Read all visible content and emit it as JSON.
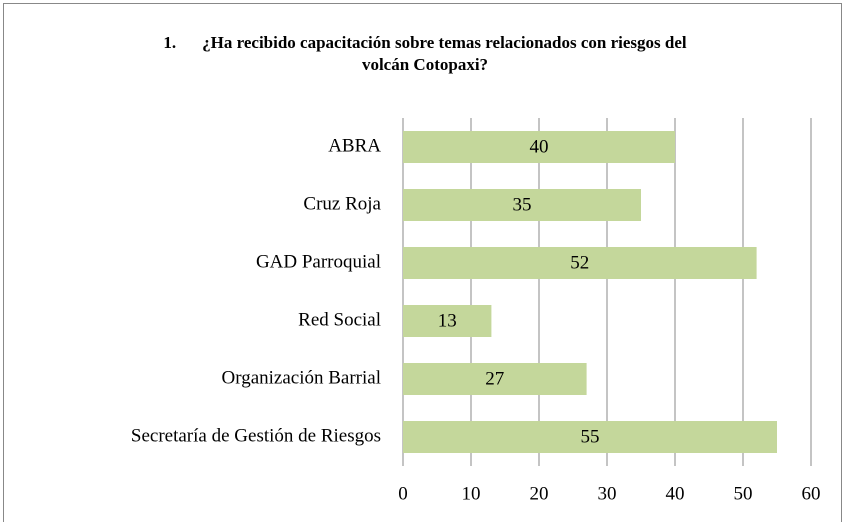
{
  "chart_data": {
    "type": "bar",
    "orientation": "horizontal",
    "number": "1.",
    "title": "¿Ha recibido capacitación sobre temas relacionados con riesgos del volcán Cotopaxi?",
    "categories": [
      "ABRA",
      "Cruz Roja",
      "GAD Parroquial",
      "Red Social",
      "Organización Barrial",
      "Secretaría de Gestión de Riesgos"
    ],
    "values": [
      40,
      35,
      52,
      13,
      27,
      55
    ],
    "color": "#c4d79b",
    "xlim": [
      0,
      60
    ],
    "xticks": [
      0,
      10,
      20,
      30,
      40,
      50,
      60
    ],
    "grid": true,
    "data_labels": true
  }
}
